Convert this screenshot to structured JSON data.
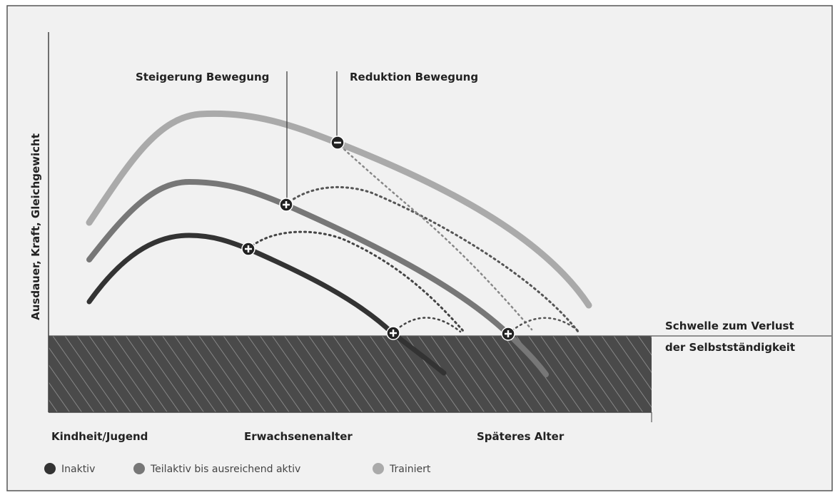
{
  "y_axis_label": "Ausdauer, Kraft, Gleichgewicht",
  "annotations": [
    "Steigerung Bewegung",
    "Reduktion Bewegung"
  ],
  "threshold_label": [
    "Schwelle zum Verlust",
    "der Selbstständigkeit"
  ],
  "x_labels": [
    "Kindheit/Jugend",
    "Erwachsenenalter",
    "Späteres Alter"
  ],
  "legend": [
    {
      "label": "Inaktiv",
      "color": "#333333"
    },
    {
      "label": "Teilaktiv bis ausreichend aktiv",
      "color": "#777777"
    },
    {
      "label": "Trainiert",
      "color": "#aaaaaa"
    }
  ]
}
